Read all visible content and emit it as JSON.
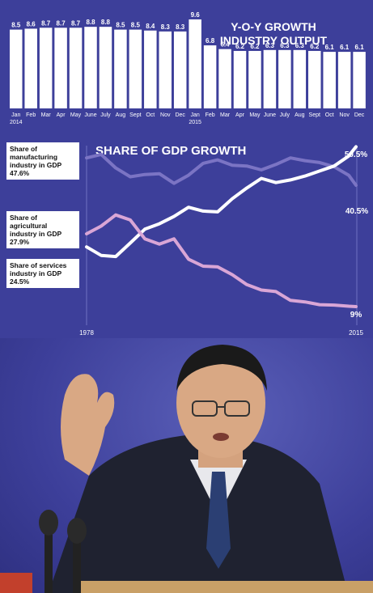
{
  "bar_chart": {
    "title_line1": "Y-O-Y GROWTH",
    "title_line2": "INDUSTRY OUTPUT",
    "bar_color": "#ffffff",
    "highlight_color": "#ffffff"
  },
  "line_chart": {
    "title": "SHARE OF GDP GROWTH",
    "start_year": "1978",
    "end_year": "2015",
    "annot_manufacturing_end": "40.5%",
    "annot_services_end": "50.5%",
    "annot_agriculture_end": "9%",
    "labels": [
      {
        "line1": "Share of",
        "line2": "manufacturing",
        "line3": "industry in GDP",
        "value": "47.6%"
      },
      {
        "line1": "Share of",
        "line2": "agricultural",
        "line3": "industry in GDP",
        "value": "27.9%"
      },
      {
        "line1": "Share of services",
        "line2": "industry in GDP",
        "line3": "",
        "value": "24.5%"
      }
    ],
    "colors": {
      "manufacturing": "#7b74c4",
      "services": "#ffffff",
      "agriculture": "#d9a6d6"
    }
  },
  "chart_data": [
    {
      "type": "bar",
      "title": "Y-O-Y GROWTH INDUSTRY OUTPUT",
      "categories": [
        "Jan 2014",
        "Feb",
        "Mar",
        "Apr",
        "May",
        "June",
        "July",
        "Aug",
        "Sept",
        "Oct",
        "Nov",
        "Dec",
        "Jan 2015",
        "Feb",
        "Mar",
        "Apr",
        "May",
        "June",
        "July",
        "Aug",
        "Sept",
        "Oct",
        "Nov",
        "Dec"
      ],
      "tick_labels_line1": [
        "Jan",
        "Feb",
        "Mar",
        "Apr",
        "May",
        "June",
        "July",
        "Aug",
        "Sept",
        "Oct",
        "Nov",
        "Dec",
        "Jan",
        "Feb",
        "Mar",
        "Apr",
        "May",
        "June",
        "July",
        "Aug",
        "Sept",
        "Oct",
        "Nov",
        "Dec"
      ],
      "tick_labels_line2": [
        "2014",
        "",
        "",
        "",
        "",
        "",
        "",
        "",
        "",
        "",
        "",
        "",
        "2015",
        "",
        "",
        "",
        "",
        "",
        "",
        "",
        "",
        "",
        "",
        ""
      ],
      "values": [
        8.5,
        8.6,
        8.7,
        8.7,
        8.7,
        8.8,
        8.8,
        8.5,
        8.5,
        8.4,
        8.3,
        8.3,
        9.6,
        6.8,
        6.4,
        6.2,
        6.2,
        6.3,
        6.3,
        6.3,
        6.2,
        6.1,
        6.1,
        6.1
      ],
      "value_labels": [
        "8.5",
        "8.6",
        "8.7",
        "8.7",
        "8.7",
        "8.8",
        "8.8",
        "8.5",
        "8.5",
        "8.4",
        "8.3",
        "8.3",
        "9.6",
        "6.8",
        "6.4",
        "6.2",
        "6.2",
        "6.3",
        "6.3",
        "6.3",
        "6.2",
        "6.1",
        "6.1",
        "6.1"
      ],
      "ylim": [
        0,
        9.6
      ]
    },
    {
      "type": "line",
      "title": "SHARE OF GDP GROWTH",
      "xlim": [
        1978,
        2015
      ],
      "ylim": [
        5,
        55
      ],
      "series": [
        {
          "name": "Share of manufacturing industry in GDP",
          "x": [
            1978,
            1980,
            1982,
            1984,
            1986,
            1988,
            1990,
            1992,
            1994,
            1996,
            1998,
            2000,
            2002,
            2004,
            2006,
            2008,
            2010,
            2012,
            2014,
            2015
          ],
          "y": [
            47.6,
            48.5,
            45.0,
            42.7,
            43.3,
            43.5,
            41.0,
            43.1,
            46.2,
            47.1,
            45.7,
            45.5,
            44.5,
            45.9,
            47.6,
            46.9,
            46.4,
            45.3,
            43.1,
            40.5
          ]
        },
        {
          "name": "Share of services industry in GDP",
          "x": [
            1978,
            1980,
            1982,
            1984,
            1986,
            1988,
            1990,
            1992,
            1994,
            1996,
            1998,
            2000,
            2002,
            2004,
            2006,
            2008,
            2010,
            2012,
            2014,
            2015
          ],
          "y": [
            24.5,
            22.3,
            22.0,
            25.5,
            29.1,
            30.5,
            32.4,
            34.8,
            33.8,
            33.6,
            37.0,
            39.8,
            42.3,
            41.2,
            41.9,
            42.9,
            44.2,
            45.5,
            48.1,
            50.5
          ]
        },
        {
          "name": "Share of agricultural industry in GDP",
          "x": [
            1978,
            1980,
            1982,
            1984,
            1986,
            1988,
            1990,
            1992,
            1994,
            1996,
            1998,
            2000,
            2002,
            2004,
            2006,
            2008,
            2010,
            2012,
            2014,
            2015
          ],
          "y": [
            27.9,
            29.9,
            32.8,
            31.5,
            26.6,
            25.2,
            26.6,
            21.3,
            19.5,
            19.3,
            17.3,
            14.7,
            13.3,
            12.9,
            10.6,
            10.2,
            9.5,
            9.4,
            9.1,
            9.0
          ]
        }
      ]
    }
  ]
}
